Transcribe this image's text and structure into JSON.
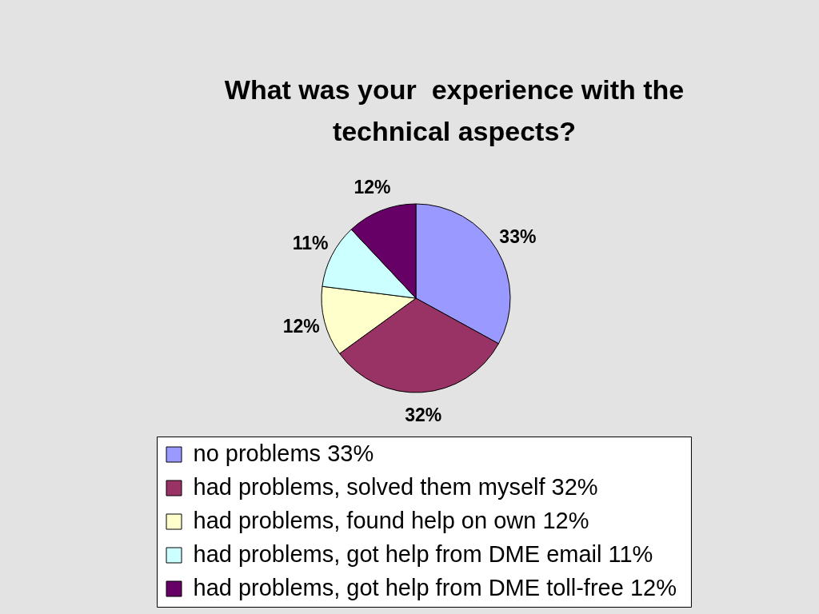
{
  "chart_data": {
    "type": "pie",
    "title": "What was your  experience with the technical aspects?",
    "categories": [
      "no problems 33%",
      "had problems, solved them myself 32%",
      "had problems, found help on own 12%",
      "had problems, got help from DME email 11%",
      "had problems, got help from DME toll-free 12%"
    ],
    "values": [
      33,
      32,
      12,
      11,
      12
    ],
    "colors": [
      "#9999ff",
      "#993366",
      "#ffffcc",
      "#ccffff",
      "#660066"
    ],
    "value_labels": [
      "33%",
      "32%",
      "12%",
      "11%",
      "12%"
    ],
    "legend": "bottom"
  }
}
